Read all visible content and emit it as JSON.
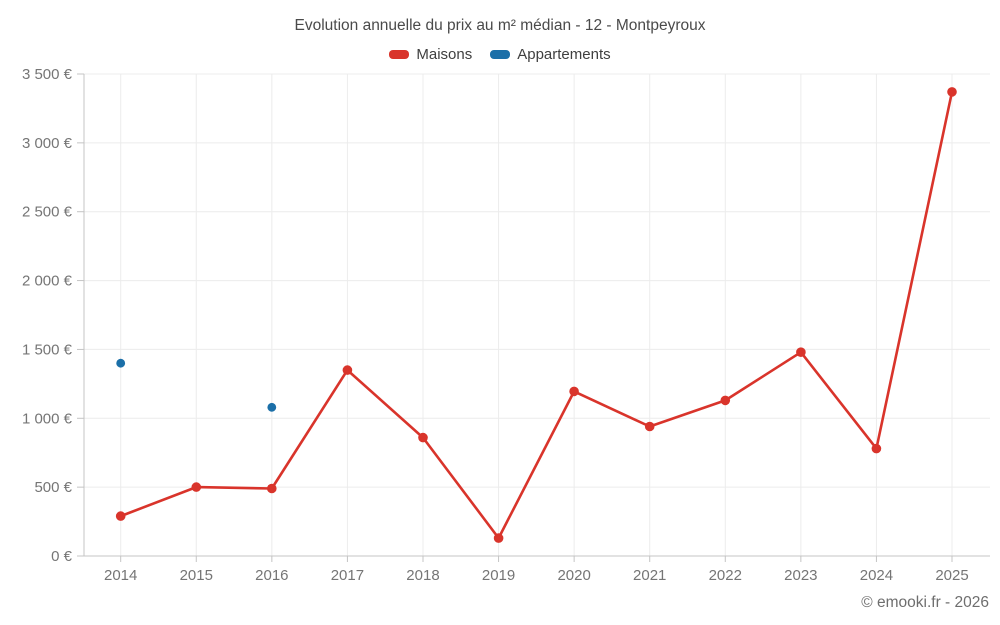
{
  "title": "Evolution annuelle du prix au m² médian - 12 - Montpeyroux",
  "legend": [
    {
      "label": "Maisons",
      "color": "#d9342b"
    },
    {
      "label": "Appartements",
      "color": "#1b6fa8"
    }
  ],
  "footer": "© emooki.fr - 2026",
  "colors": {
    "maisons": "#d9342b",
    "appartements": "#1b6fa8",
    "gridline": "#ececec",
    "axis": "#c4c4c4",
    "tick_text": "#757575"
  },
  "chart_data": {
    "type": "line",
    "title": "Evolution annuelle du prix au m² médian - 12 - Montpeyroux",
    "x": [
      2014,
      2015,
      2016,
      2017,
      2018,
      2019,
      2020,
      2021,
      2022,
      2023,
      2024,
      2025
    ],
    "x_labels": [
      "2014",
      "2015",
      "2016",
      "2017",
      "2018",
      "2019",
      "2020",
      "2021",
      "2022",
      "2023",
      "2024",
      "2025"
    ],
    "series": [
      {
        "name": "Maisons",
        "type": "line",
        "color": "#d9342b",
        "values": [
          290,
          500,
          490,
          1350,
          860,
          130,
          1195,
          940,
          1130,
          1480,
          780,
          3370
        ]
      },
      {
        "name": "Appartements",
        "type": "scatter",
        "color": "#1b6fa8",
        "values": [
          1400,
          null,
          1080,
          null,
          null,
          null,
          null,
          null,
          null,
          null,
          null,
          null
        ]
      }
    ],
    "ylim": [
      0,
      3500
    ],
    "ytick_step": 500,
    "ytick_labels": [
      "0 €",
      "500 €",
      "1 000 €",
      "1 500 €",
      "2 000 €",
      "2 500 €",
      "3 000 €",
      "3 500 €"
    ],
    "grid": true,
    "legend_position": "top",
    "xlabel": "",
    "ylabel": ""
  }
}
